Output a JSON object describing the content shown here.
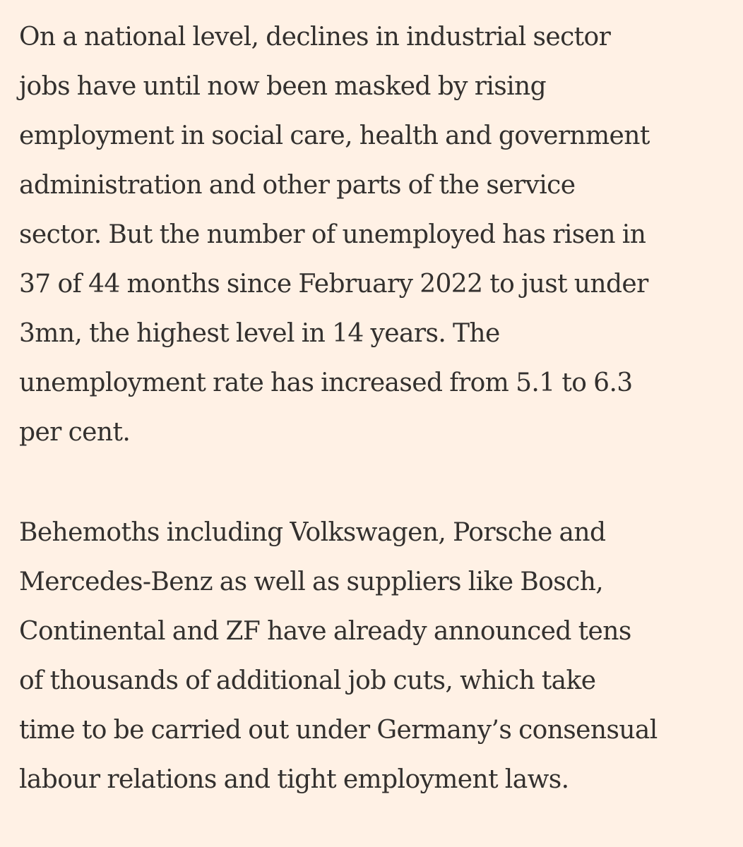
{
  "article": {
    "paragraphs": [
      {
        "lines": [
          "On a national level, declines in industrial sector",
          "jobs have until now been masked by rising",
          "employment in social care, health and government",
          "administration and other parts of the service",
          "sector. But the number of unemployed has risen in",
          "37 of 44 months since February 2022 to just under",
          "3mn, the highest level in 14 years. The",
          "unemployment rate has increased from 5.1 to 6.3",
          "per cent."
        ]
      },
      {
        "lines": [
          "Behemoths including Volkswagen, Porsche and",
          "Mercedes-Benz as well as suppliers like Bosch,",
          "Continental and ZF have already announced tens",
          "of thousands of additional job cuts, which take",
          "time to be carried out under Germany’s consensual",
          "labour relations and tight employment laws."
        ]
      }
    ]
  }
}
